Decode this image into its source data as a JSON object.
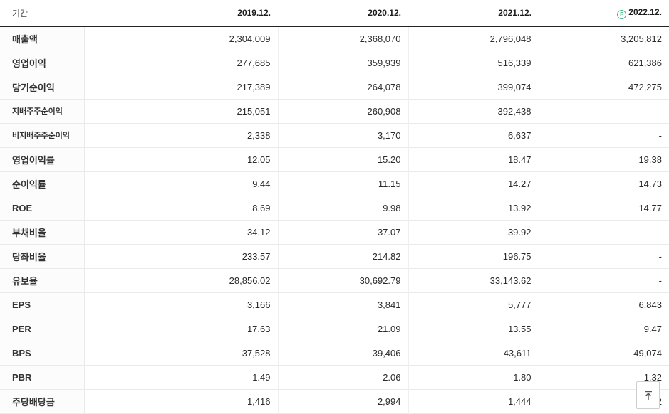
{
  "colors": {
    "estimate_green": "#3cb87e",
    "header_border": "#232323",
    "grid_line": "#eaeaea"
  },
  "table": {
    "period_header": "기간",
    "year_columns": [
      "2019.12.",
      "2020.12.",
      "2021.12.",
      "2022.12."
    ],
    "estimate_badge_letter": "E",
    "estimate_column_index": 3,
    "rows": [
      {
        "label": "매출액",
        "sub": false,
        "values": [
          "2,304,009",
          "2,368,070",
          "2,796,048",
          "3,205,812"
        ]
      },
      {
        "label": "영업이익",
        "sub": false,
        "values": [
          "277,685",
          "359,939",
          "516,339",
          "621,386"
        ]
      },
      {
        "label": "당기순이익",
        "sub": false,
        "values": [
          "217,389",
          "264,078",
          "399,074",
          "472,275"
        ]
      },
      {
        "label": "지배주주순이익",
        "sub": true,
        "values": [
          "215,051",
          "260,908",
          "392,438",
          "-"
        ]
      },
      {
        "label": "비지배주주순이익",
        "sub": true,
        "values": [
          "2,338",
          "3,170",
          "6,637",
          "-"
        ]
      },
      {
        "label": "영업이익률",
        "sub": false,
        "values": [
          "12.05",
          "15.20",
          "18.47",
          "19.38"
        ]
      },
      {
        "label": "순이익률",
        "sub": false,
        "values": [
          "9.44",
          "11.15",
          "14.27",
          "14.73"
        ]
      },
      {
        "label": "ROE",
        "sub": false,
        "values": [
          "8.69",
          "9.98",
          "13.92",
          "14.77"
        ]
      },
      {
        "label": "부채비율",
        "sub": false,
        "values": [
          "34.12",
          "37.07",
          "39.92",
          "-"
        ]
      },
      {
        "label": "당좌비율",
        "sub": false,
        "values": [
          "233.57",
          "214.82",
          "196.75",
          "-"
        ]
      },
      {
        "label": "유보율",
        "sub": false,
        "values": [
          "28,856.02",
          "30,692.79",
          "33,143.62",
          "-"
        ]
      },
      {
        "label": "EPS",
        "sub": false,
        "values": [
          "3,166",
          "3,841",
          "5,777",
          "6,843"
        ]
      },
      {
        "label": "PER",
        "sub": false,
        "values": [
          "17.63",
          "21.09",
          "13.55",
          "9.47"
        ]
      },
      {
        "label": "BPS",
        "sub": false,
        "values": [
          "37,528",
          "39,406",
          "43,611",
          "49,074"
        ]
      },
      {
        "label": "PBR",
        "sub": false,
        "values": [
          "1.49",
          "2.06",
          "1.80",
          "1.32"
        ]
      },
      {
        "label": "주당배당금",
        "sub": false,
        "values": [
          "1,416",
          "2,994",
          "1,444",
          "1,532"
        ],
        "last_value_partially_obscured": true
      }
    ]
  },
  "scroll_top_button": {
    "icon": "arrow-up-to-top-icon"
  }
}
